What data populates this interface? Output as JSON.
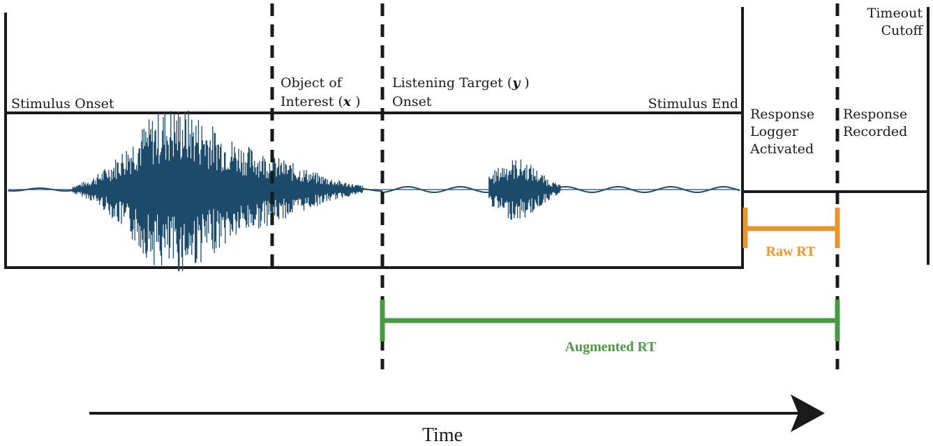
{
  "labels": {
    "stimulus_onset": "Stimulus Onset",
    "object_of_interest": [
      "Object of",
      "Interest ("
    ],
    "object_var": "x",
    "listening_target": [
      "Listening Target (",
      "Onset"
    ],
    "listening_var": "y",
    "stimulus_end": "Stimulus End",
    "response_logger": [
      "Response",
      "Logger",
      "Activated"
    ],
    "response_recorded": [
      "Response",
      "Recorded"
    ],
    "timeout_cutoff": [
      "Timeout",
      "Cutoff"
    ],
    "raw_rt": "Raw RT",
    "augmented_rt": "Augmented RT",
    "time": "Time"
  },
  "colors": {
    "waveform": "#1b4a6b",
    "raw_rt": "#e8962e",
    "augmented_rt": "#4a9a43",
    "lines": "#1a1a1a"
  }
}
